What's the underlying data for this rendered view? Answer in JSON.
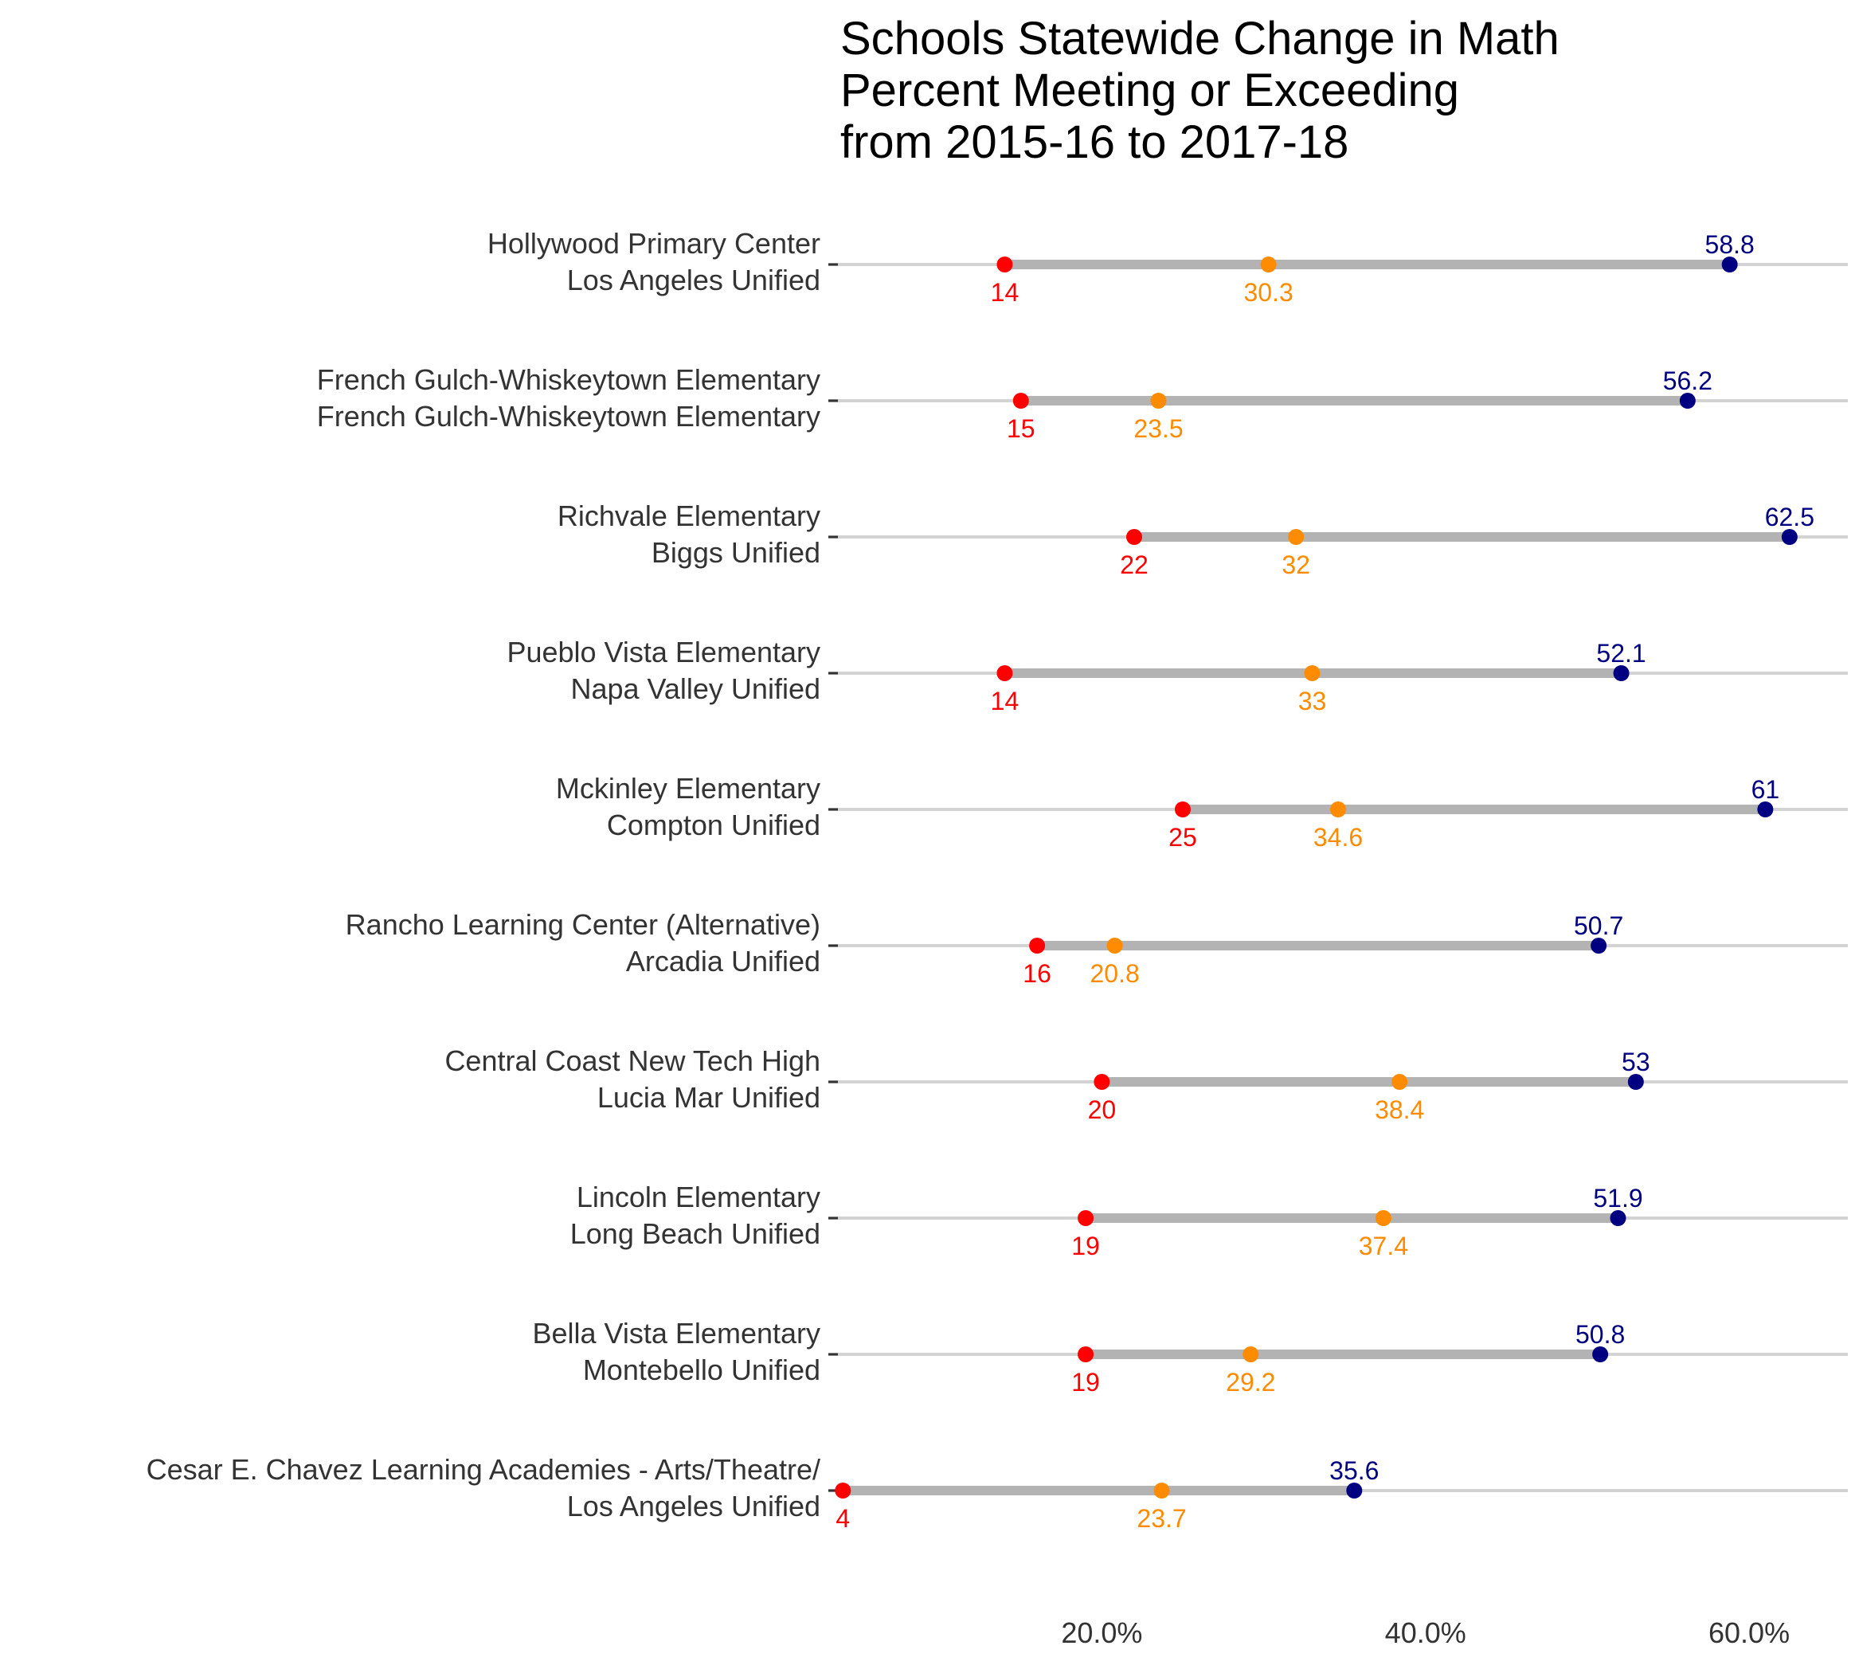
{
  "colors": {
    "y2016": "#FF0000",
    "y2017": "#FF8C00",
    "y2018": "#000080",
    "range_bar": "#B3B3B3",
    "row_line": "#D3D3D3"
  },
  "chart_data": {
    "type": "dumbbell",
    "title": [
      "Schools Statewide Change in Math",
      "Percent Meeting or Exceeding",
      "from 2015-16 to 2017-18"
    ],
    "xlabel": "",
    "ylabel": "",
    "x_ticks": [
      "20.0%",
      "40.0%",
      "60.0%"
    ],
    "x_tick_values": [
      20,
      40,
      60
    ],
    "xlim": [
      3.1,
      66.1
    ],
    "grid": false,
    "legend": "none",
    "rows": [
      {
        "school": "Hollywood Primary Center",
        "district": "Los Angeles Unified",
        "v2016": 14,
        "v2017": 30.3,
        "v2018": 58.8,
        "l2016": "14",
        "l2017": "30.3",
        "l2018": "58.8"
      },
      {
        "school": "French Gulch-Whiskeytown Elementary",
        "district": "French Gulch-Whiskeytown Elementary",
        "v2016": 15,
        "v2017": 23.5,
        "v2018": 56.2,
        "l2016": "15",
        "l2017": "23.5",
        "l2018": "56.2"
      },
      {
        "school": "Richvale Elementary",
        "district": "Biggs Unified",
        "v2016": 22,
        "v2017": 32,
        "v2018": 62.5,
        "l2016": "22",
        "l2017": "32",
        "l2018": "62.5"
      },
      {
        "school": "Pueblo Vista Elementary",
        "district": "Napa Valley Unified",
        "v2016": 14,
        "v2017": 33,
        "v2018": 52.1,
        "l2016": "14",
        "l2017": "33",
        "l2018": "52.1"
      },
      {
        "school": "Mckinley Elementary",
        "district": "Compton Unified",
        "v2016": 25,
        "v2017": 34.6,
        "v2018": 61,
        "l2016": "25",
        "l2017": "34.6",
        "l2018": "61"
      },
      {
        "school": "Rancho Learning Center (Alternative)",
        "district": "Arcadia Unified",
        "v2016": 16,
        "v2017": 20.8,
        "v2018": 50.7,
        "l2016": "16",
        "l2017": "20.8",
        "l2018": "50.7"
      },
      {
        "school": "Central Coast New Tech High",
        "district": "Lucia Mar Unified",
        "v2016": 20,
        "v2017": 38.4,
        "v2018": 53,
        "l2016": "20",
        "l2017": "38.4",
        "l2018": "53"
      },
      {
        "school": "Lincoln Elementary",
        "district": "Long Beach Unified",
        "v2016": 19,
        "v2017": 37.4,
        "v2018": 51.9,
        "l2016": "19",
        "l2017": "37.4",
        "l2018": "51.9"
      },
      {
        "school": "Bella Vista Elementary",
        "district": "Montebello Unified",
        "v2016": 19,
        "v2017": 29.2,
        "v2018": 50.8,
        "l2016": "19",
        "l2017": "29.2",
        "l2018": "50.8"
      },
      {
        "school": "Cesar E. Chavez Learning Academies - Arts/Theatre/",
        "district": "Los Angeles Unified",
        "v2016": 4,
        "v2017": 23.7,
        "v2018": 35.6,
        "l2016": "4",
        "l2017": "23.7",
        "l2018": "35.6"
      }
    ]
  }
}
